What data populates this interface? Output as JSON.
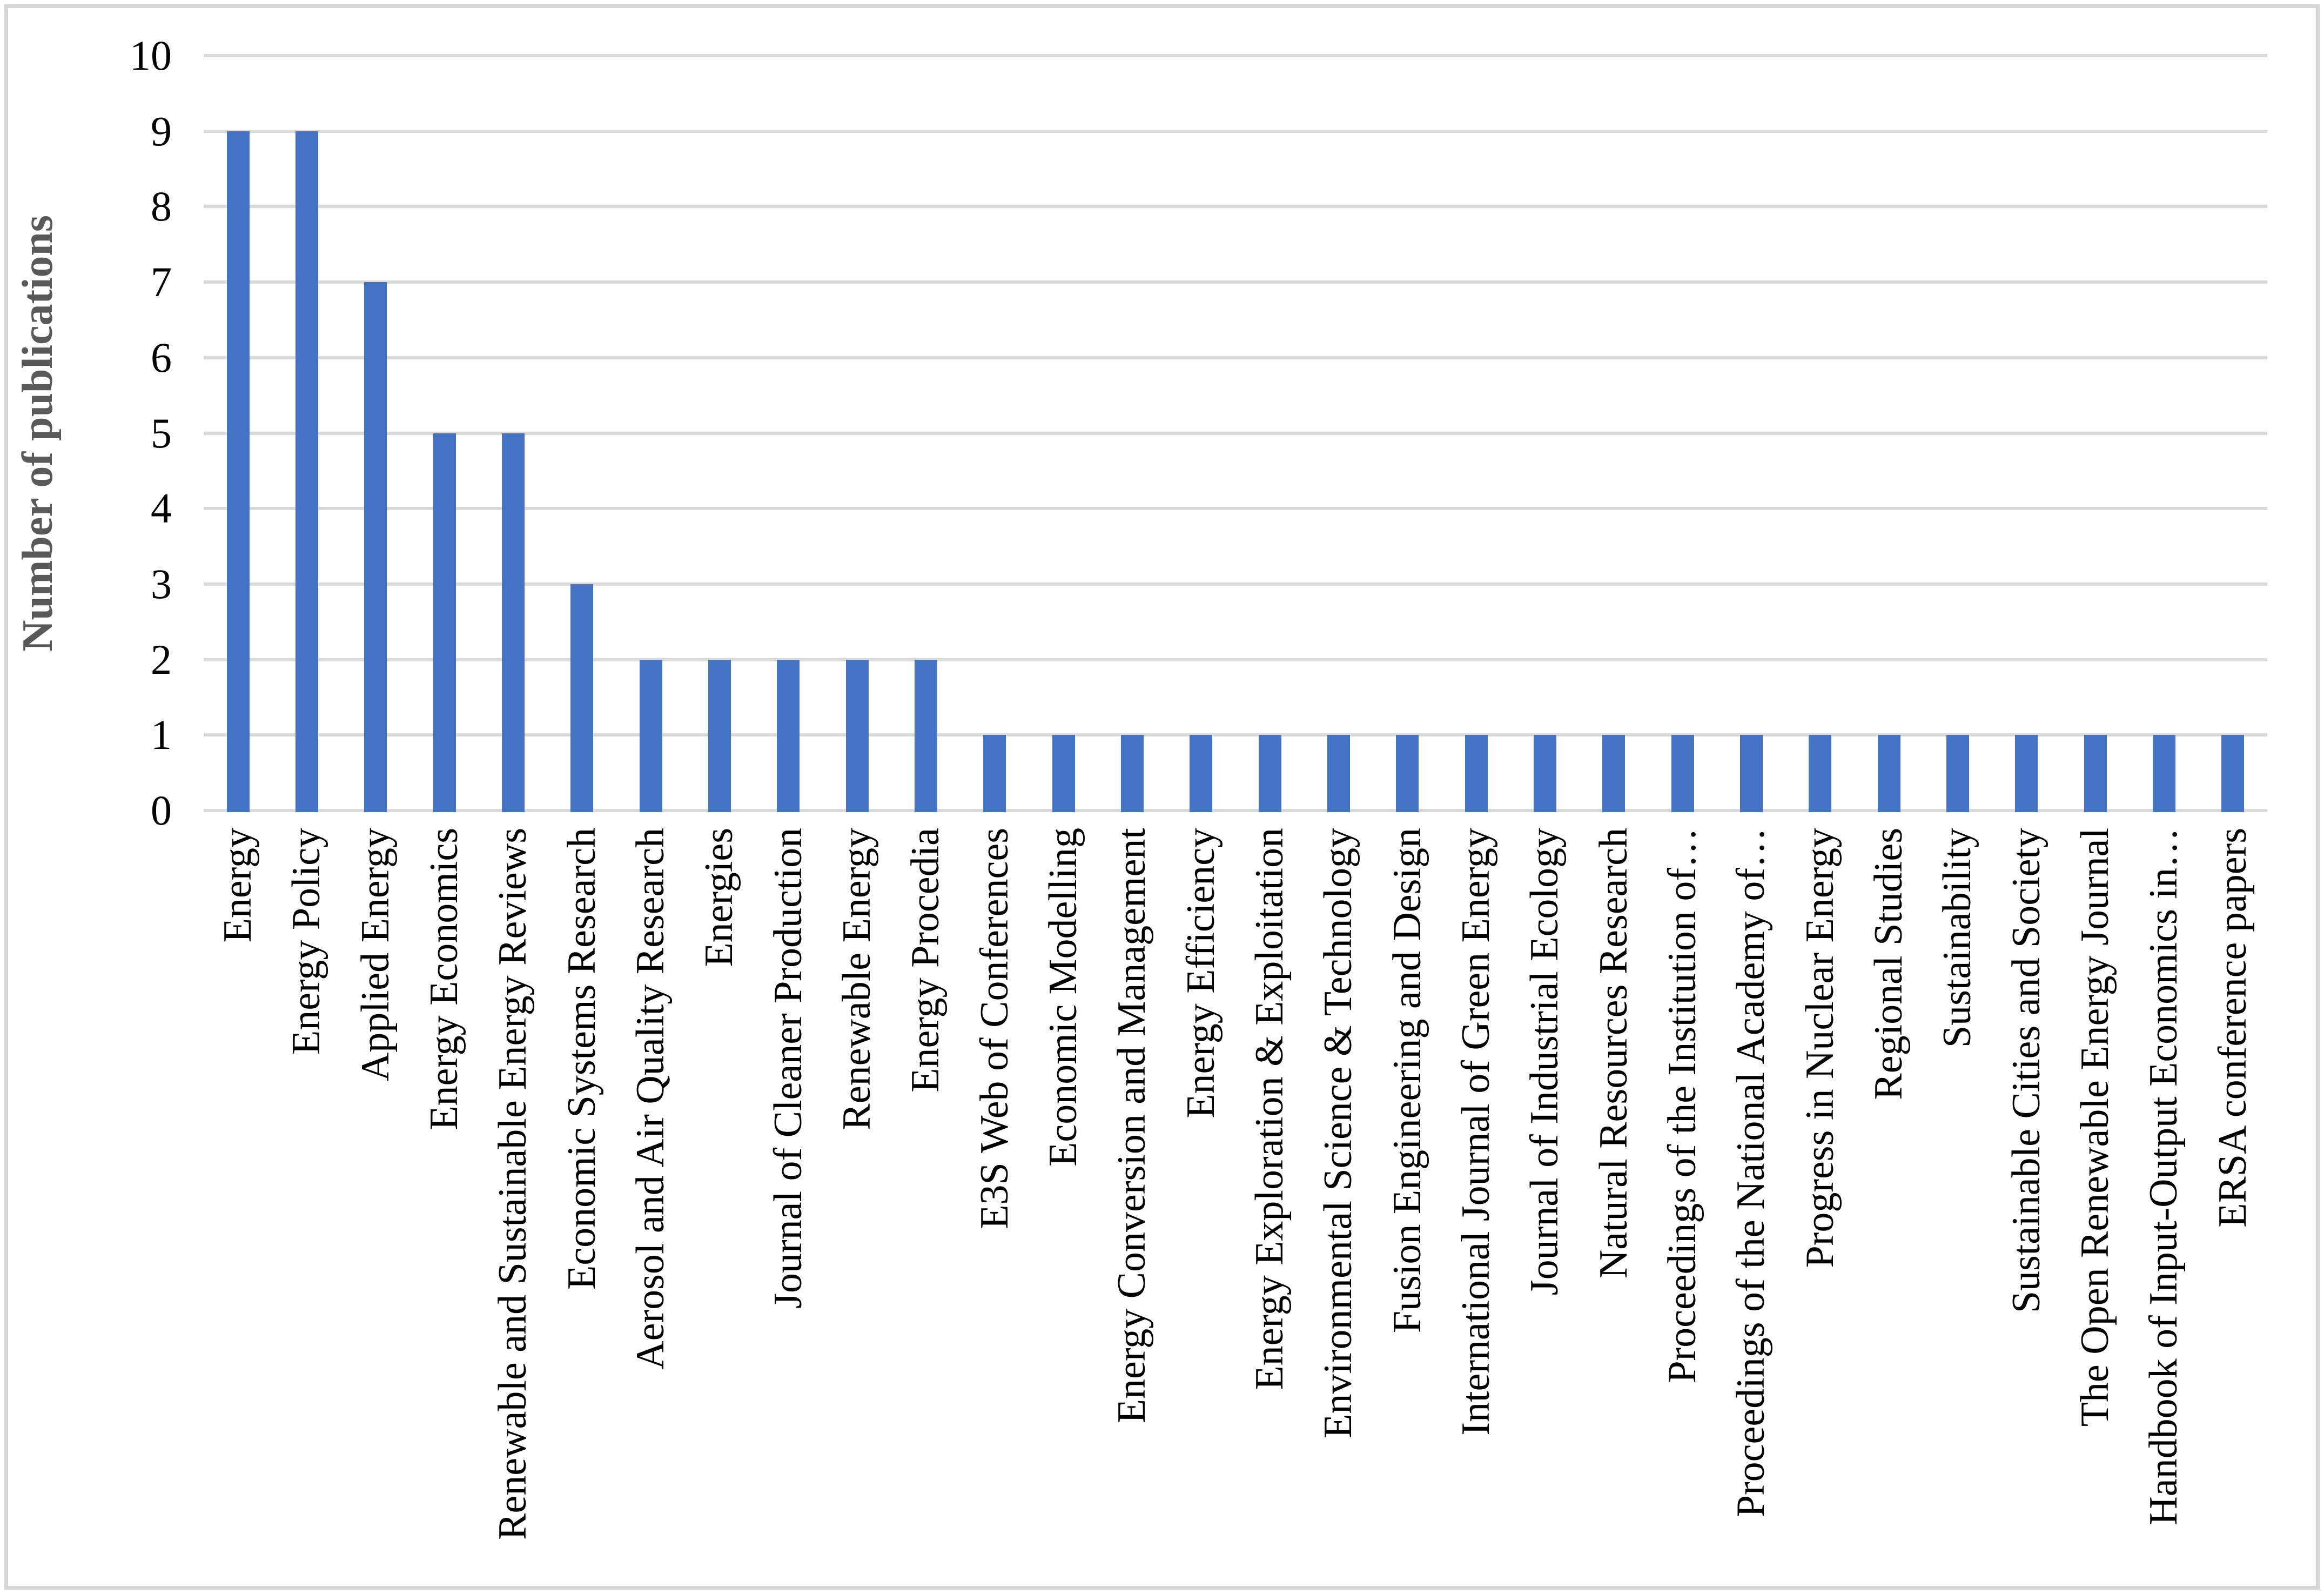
{
  "figure": {
    "background_color": "#ffffff",
    "border_color": "#d6d6d6"
  },
  "chart_data": {
    "type": "bar",
    "title": "",
    "xlabel": "",
    "ylabel": "Number of publications",
    "ylim": [
      0,
      10
    ],
    "yticks": [
      0,
      1,
      2,
      3,
      4,
      5,
      6,
      7,
      8,
      9,
      10
    ],
    "grid": "horizontal",
    "legend_position": "none",
    "bar_color": "#4472c4",
    "gridline_color": "#d9d9d9",
    "tick_label_color": "#000000",
    "axis_title_color": "#595959",
    "categories": [
      "Energy",
      "Energy Policy",
      "Applied Energy",
      "Energy Economics",
      "Renewable and Sustainable Energy Reviews",
      "Economic Systems Research",
      "Aerosol and Air Quality Research",
      "Energies",
      "Journal of Cleaner Production",
      "Renewable Energy",
      "Energy Procedia",
      "E3S Web of Conferences",
      "Economic Modelling",
      "Energy Conversion and Management",
      "Energy Efficiency",
      "Energy Exploration & Exploitation",
      "Environmental Science & Technology",
      "Fusion Engineering and Design",
      "International Journal of Green Energy",
      "Journal of Industrial Ecology",
      "Natural Resources Research",
      "Proceedings of the Institution of…",
      "Proceedings of the National Academy of…",
      "Progress in Nuclear Energy",
      "Regional Studies",
      "Sustainability",
      "Sustainable Cities and Society",
      "The Open Renewable Energy Journal",
      "Handbook of Input-Output Economics in…",
      "ERSA conference papers"
    ],
    "values": [
      9,
      9,
      7,
      5,
      5,
      3,
      2,
      2,
      2,
      2,
      2,
      1,
      1,
      1,
      1,
      1,
      1,
      1,
      1,
      1,
      1,
      1,
      1,
      1,
      1,
      1,
      1,
      1,
      1,
      1
    ]
  }
}
